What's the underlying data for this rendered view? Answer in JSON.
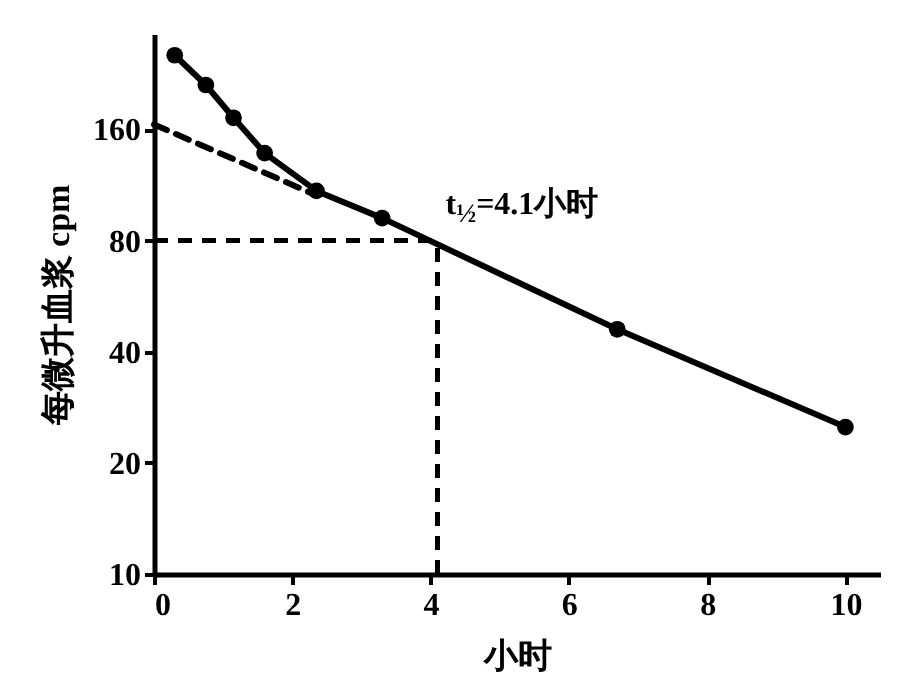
{
  "chart_data": {
    "type": "line",
    "xlabel": "小时",
    "ylabel": "每微升血浆 cpm",
    "log": "y",
    "grid": false,
    "xlim": [
      0,
      10.5
    ],
    "xticks": [
      0,
      2,
      4,
      6,
      8,
      10
    ],
    "ylim": [
      10,
      290
    ],
    "yticks": [
      10,
      20,
      40,
      80,
      160
    ],
    "series": [
      {
        "color": "#000000",
        "marker": "circle",
        "line_style": "solid",
        "x": [
          0.3,
          0.75,
          1.15,
          1.6,
          2.35,
          3.3,
          6.7,
          10
        ],
        "values": [
          254,
          211,
          172,
          138,
          109,
          92,
          46,
          25
        ]
      },
      {
        "color": "#000000",
        "marker": "none",
        "line_style": "dashed",
        "x": [
          0,
          2.35
        ],
        "values": [
          165,
          106
        ]
      }
    ],
    "ref_lines": [
      {
        "axis": "y",
        "value": 80,
        "line_style": "dashed"
      },
      {
        "axis": "x",
        "value": 4.1,
        "line_style": "dashed"
      }
    ],
    "annotations": [
      {
        "text": "t$_{½}$=4.1小时",
        "x": 4.1,
        "y": 80
      }
    ]
  }
}
